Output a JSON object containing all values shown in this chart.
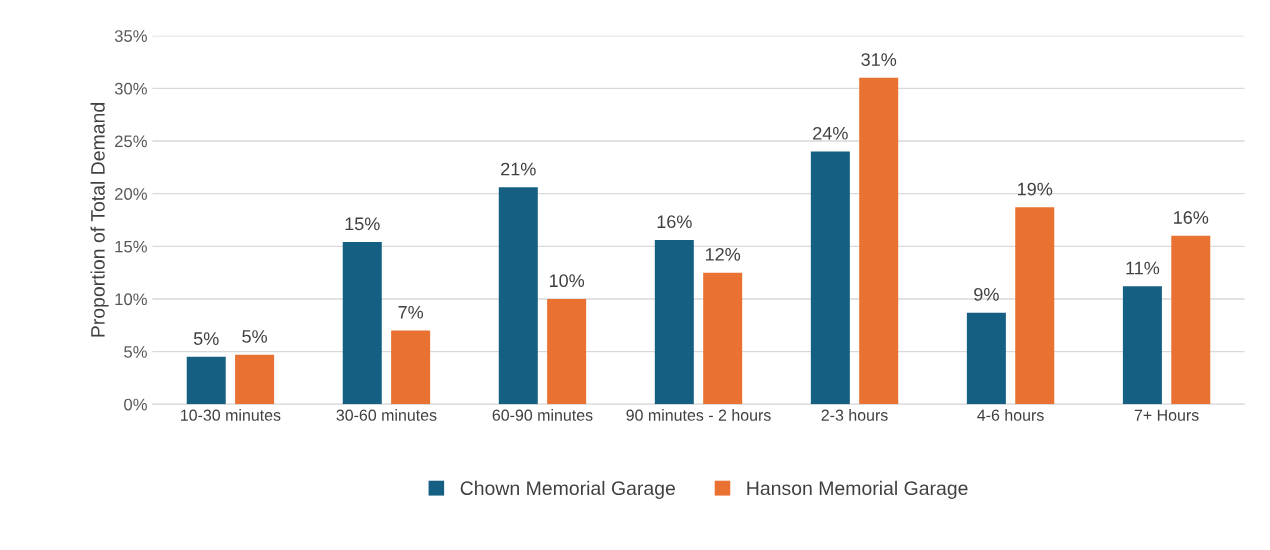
{
  "chart_data": {
    "type": "bar",
    "ylabel": "Proportion of Total Demand",
    "categories": [
      "10-30 minutes",
      "30-60 minutes",
      "60-90 minutes",
      "90 minutes - 2 hours",
      "2-3 hours",
      "4-6 hours",
      "7+ Hours"
    ],
    "series": [
      {
        "name": "Chown Memorial Garage",
        "color": "#156082",
        "values": [
          4.5,
          15.4,
          20.6,
          15.6,
          24.0,
          8.7,
          11.2
        ],
        "value_labels": [
          "5%",
          "15%",
          "21%",
          "16%",
          "24%",
          "9%",
          "11%"
        ]
      },
      {
        "name": "Hanson Memorial Garage",
        "color": "#e97132",
        "values": [
          4.7,
          7.0,
          10.0,
          12.5,
          31.0,
          18.7,
          16.0
        ],
        "value_labels": [
          "5%",
          "7%",
          "10%",
          "12%",
          "31%",
          "19%",
          "16%"
        ]
      }
    ],
    "ylim": [
      0,
      35
    ],
    "yticks": [
      {
        "value": 0,
        "label": "0%"
      },
      {
        "value": 5,
        "label": "5%"
      },
      {
        "value": 10,
        "label": "10%"
      },
      {
        "value": 15,
        "label": "15%"
      },
      {
        "value": 20,
        "label": "20%"
      },
      {
        "value": 25,
        "label": "25%"
      },
      {
        "value": 30,
        "label": "30%"
      },
      {
        "value": 35,
        "label": "35%"
      }
    ],
    "grid": "y",
    "legend": "bottom"
  }
}
